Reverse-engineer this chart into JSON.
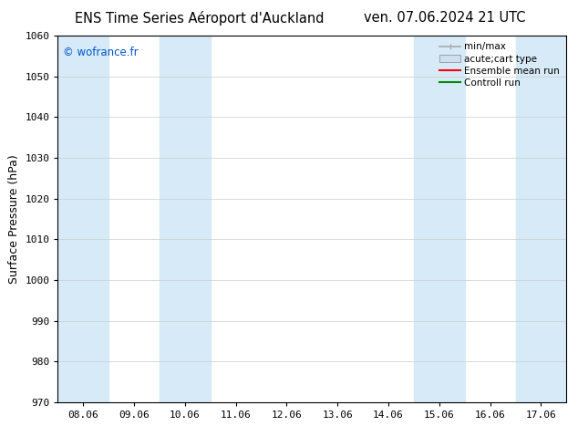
{
  "title_left": "ENS Time Series Aéroport d'Auckland",
  "title_right": "ven. 07.06.2024 21 UTC",
  "ylabel": "Surface Pressure (hPa)",
  "ylim": [
    970,
    1060
  ],
  "yticks": [
    970,
    980,
    990,
    1000,
    1010,
    1020,
    1030,
    1040,
    1050,
    1060
  ],
  "xtick_labels": [
    "08.06",
    "09.06",
    "10.06",
    "11.06",
    "12.06",
    "13.06",
    "14.06",
    "15.06",
    "16.06",
    "17.06"
  ],
  "xtick_positions": [
    0,
    1,
    2,
    3,
    4,
    5,
    6,
    7,
    8,
    9
  ],
  "xlim": [
    -0.5,
    9.5
  ],
  "shaded_bands": [
    {
      "xmin": -0.5,
      "xmax": 0.5,
      "color": "#d6eaf8"
    },
    {
      "xmin": 1.5,
      "xmax": 2.5,
      "color": "#d6eaf8"
    },
    {
      "xmin": 6.5,
      "xmax": 7.5,
      "color": "#d6eaf8"
    },
    {
      "xmin": 8.5,
      "xmax": 9.5,
      "color": "#d6eaf8"
    }
  ],
  "copyright_text": "© wofrance.fr",
  "copyright_color": "#0055cc",
  "background_color": "#ffffff",
  "legend_items": [
    {
      "label": "min/max",
      "color": "#aaaaaa",
      "type": "errbar"
    },
    {
      "label": "acute;cart type",
      "color": "#cce0f0",
      "type": "fill"
    },
    {
      "label": "Ensemble mean run",
      "color": "#ff0000",
      "type": "line"
    },
    {
      "label": "Controll run",
      "color": "#008800",
      "type": "line"
    }
  ],
  "grid_color": "#cccccc",
  "axis_color": "#000000",
  "tick_fontsize": 8,
  "title_fontsize": 10.5,
  "ylabel_fontsize": 9,
  "legend_fontsize": 7.5
}
